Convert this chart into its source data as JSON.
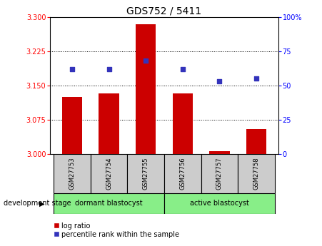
{
  "title": "GDS752 / 5411",
  "samples": [
    "GSM27753",
    "GSM27754",
    "GSM27755",
    "GSM27756",
    "GSM27757",
    "GSM27758"
  ],
  "log_ratio": [
    3.125,
    3.132,
    3.285,
    3.132,
    3.005,
    3.055
  ],
  "percentile_rank": [
    62,
    62,
    68,
    62,
    53,
    55
  ],
  "ylim_left": [
    3.0,
    3.3
  ],
  "ylim_right": [
    0,
    100
  ],
  "yticks_left": [
    3.0,
    3.075,
    3.15,
    3.225,
    3.3
  ],
  "yticks_right": [
    0,
    25,
    50,
    75,
    100
  ],
  "bar_color": "#cc0000",
  "dot_color": "#3333bb",
  "bar_width": 0.55,
  "title_fontsize": 10,
  "tick_fontsize": 7,
  "group_labels": [
    "dormant blastocyst",
    "active blastocyst"
  ],
  "group_splits": [
    3
  ],
  "group_color": "#88ee88",
  "sample_box_color": "#cccccc",
  "label_text": "development stage",
  "legend_log_ratio": "log ratio",
  "legend_percentile": "percentile rank within the sample"
}
